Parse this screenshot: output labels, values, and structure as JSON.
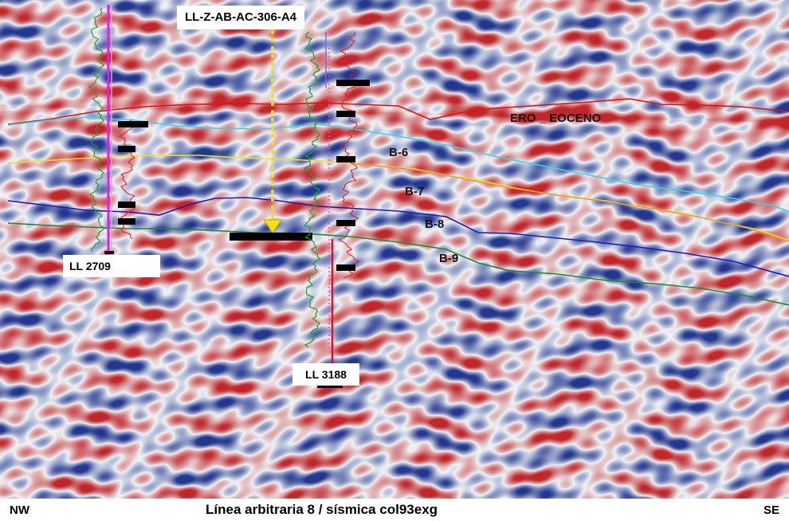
{
  "section": {
    "top_label": "LL-Z-AB-AC-306-A4",
    "caption": "Línea arbitraria 8 / sísmica col93exg",
    "left_direction": "NW",
    "right_direction": "SE"
  },
  "wells": [
    {
      "name": "LL 2709"
    },
    {
      "name": "LL 3188"
    }
  ],
  "horizons": [
    {
      "name": "ERO _ EOCENO",
      "color": "#e01010"
    },
    {
      "name": "B-6",
      "color": "#30d8e8"
    },
    {
      "name": "B-7",
      "color": "#f0e020"
    },
    {
      "name": "B-8",
      "color": "#1a1ab8"
    },
    {
      "name": "B-9",
      "color": "#1a8a30"
    }
  ],
  "colors": {
    "seismic_positive": "#c0262a",
    "seismic_negative": "#23378f",
    "well_track_magenta": "#e020e0",
    "gr_log": "#20a030",
    "res_log": "#e01a1a",
    "planned_path": "#f5e000"
  }
}
